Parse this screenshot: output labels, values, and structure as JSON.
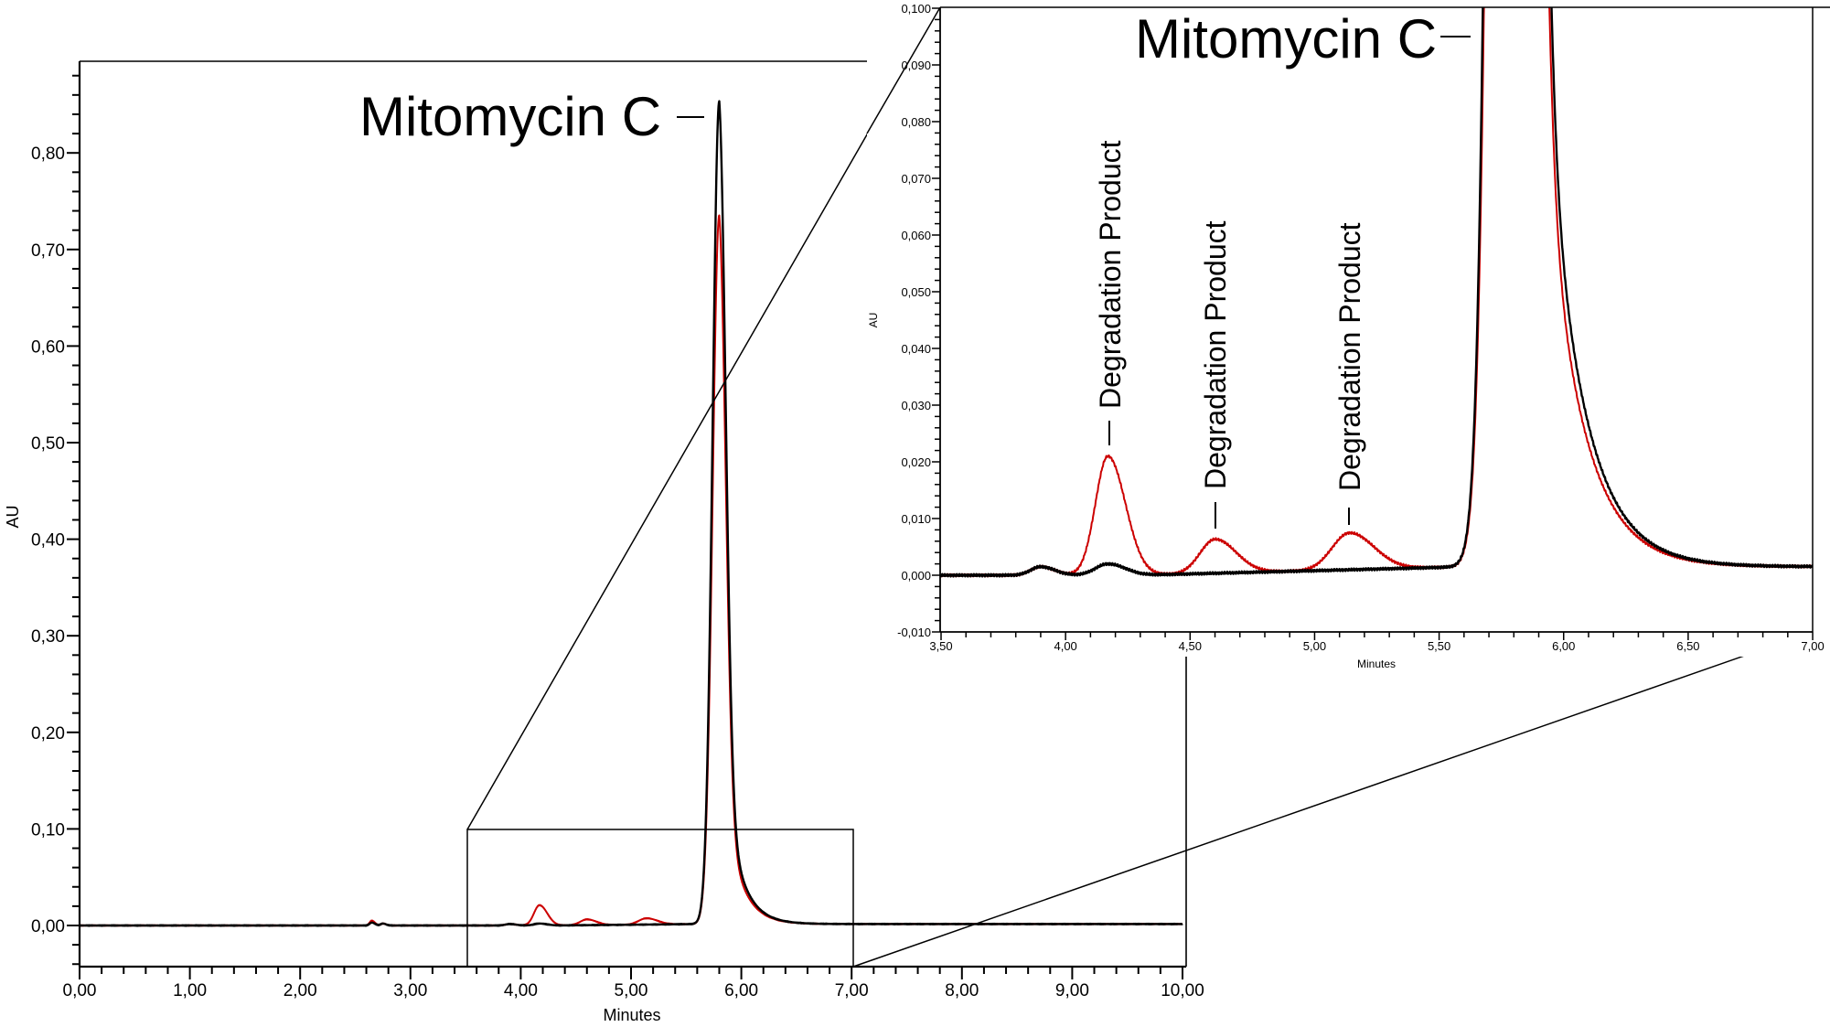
{
  "colors": {
    "trace_black": "#000000",
    "trace_red": "#cc0000",
    "axis": "#000000",
    "background": "#ffffff"
  },
  "chart_data": [
    {
      "id": "main",
      "type": "line",
      "title": "",
      "xlabel": "Minutes",
      "ylabel": "AU",
      "xlim": [
        0,
        10
      ],
      "ylim": [
        -0.05,
        0.9
      ],
      "x_ticks": [
        "0,00",
        "1,00",
        "2,00",
        "3,00",
        "4,00",
        "5,00",
        "6,00",
        "7,00",
        "8,00",
        "9,00",
        "10,00"
      ],
      "y_ticks": [
        "0,00",
        "0,10",
        "0,20",
        "0,30",
        "0,40",
        "0,50",
        "0,60",
        "0,70",
        "0,80"
      ],
      "grid": false,
      "legend": null,
      "annotations": [
        {
          "text": "Mitomycin C",
          "x": 5.8,
          "y": 0.852
        }
      ],
      "zoom_box": {
        "x": [
          3.5,
          7.0
        ],
        "y": [
          -0.05,
          0.1
        ]
      },
      "series": [
        {
          "name": "black trace",
          "color": "#000000",
          "baseline": 0.0,
          "peaks": [
            {
              "rt": 2.65,
              "height": 0.003,
              "width": 0.02
            },
            {
              "rt": 2.75,
              "height": 0.002,
              "width": 0.02
            },
            {
              "rt": 3.9,
              "height": 0.0015,
              "width": 0.04
            },
            {
              "rt": 4.17,
              "height": 0.002,
              "width": 0.05
            },
            {
              "rt": 5.8,
              "height": 0.852,
              "width": 0.06,
              "tail": 0.14
            }
          ]
        },
        {
          "name": "red trace",
          "color": "#cc0000",
          "baseline": 0.0,
          "peaks": [
            {
              "rt": 2.65,
              "height": 0.005,
              "width": 0.02
            },
            {
              "rt": 2.75,
              "height": 0.002,
              "width": 0.02
            },
            {
              "rt": 3.9,
              "height": 0.0015,
              "width": 0.04
            },
            {
              "rt": 4.17,
              "height": 0.021,
              "width": 0.05
            },
            {
              "rt": 4.6,
              "height": 0.006,
              "width": 0.06
            },
            {
              "rt": 5.14,
              "height": 0.0065,
              "width": 0.07
            },
            {
              "rt": 5.8,
              "height": 0.734,
              "width": 0.06,
              "tail": 0.14
            }
          ]
        }
      ]
    },
    {
      "id": "inset",
      "type": "line",
      "title": "",
      "xlabel": "Minutes",
      "ylabel": "AU",
      "xlim": [
        3.5,
        7.0
      ],
      "ylim": [
        -0.01,
        0.1
      ],
      "x_ticks": [
        "3,50",
        "4,00",
        "4,50",
        "5,00",
        "5,50",
        "6,00",
        "6,50",
        "7,00"
      ],
      "y_ticks": [
        "-0,010",
        "0,000",
        "0,010",
        "0,020",
        "0,030",
        "0,040",
        "0,050",
        "0,060",
        "0,070",
        "0,080",
        "0,090",
        "0,100"
      ],
      "grid": false,
      "legend": null,
      "annotations": [
        {
          "text": "Mitomycin C",
          "x": 5.8,
          "y": 0.1
        },
        {
          "text": "Degradation Product",
          "x": 4.17,
          "y": 0.021
        },
        {
          "text": "Degradation Product",
          "x": 4.6,
          "y": 0.0063
        },
        {
          "text": "Degradation Product",
          "x": 5.14,
          "y": 0.0073
        }
      ]
    }
  ],
  "labels": {
    "main_peak": "Mitomycin C",
    "inset_peak": "Mitomycin C",
    "degradation_1": "Degradation Product",
    "degradation_2": "Degradation Product",
    "degradation_3": "Degradation Product",
    "main_xlabel": "Minutes",
    "main_ylabel": "AU",
    "inset_xlabel": "Minutes",
    "inset_ylabel": "AU"
  }
}
